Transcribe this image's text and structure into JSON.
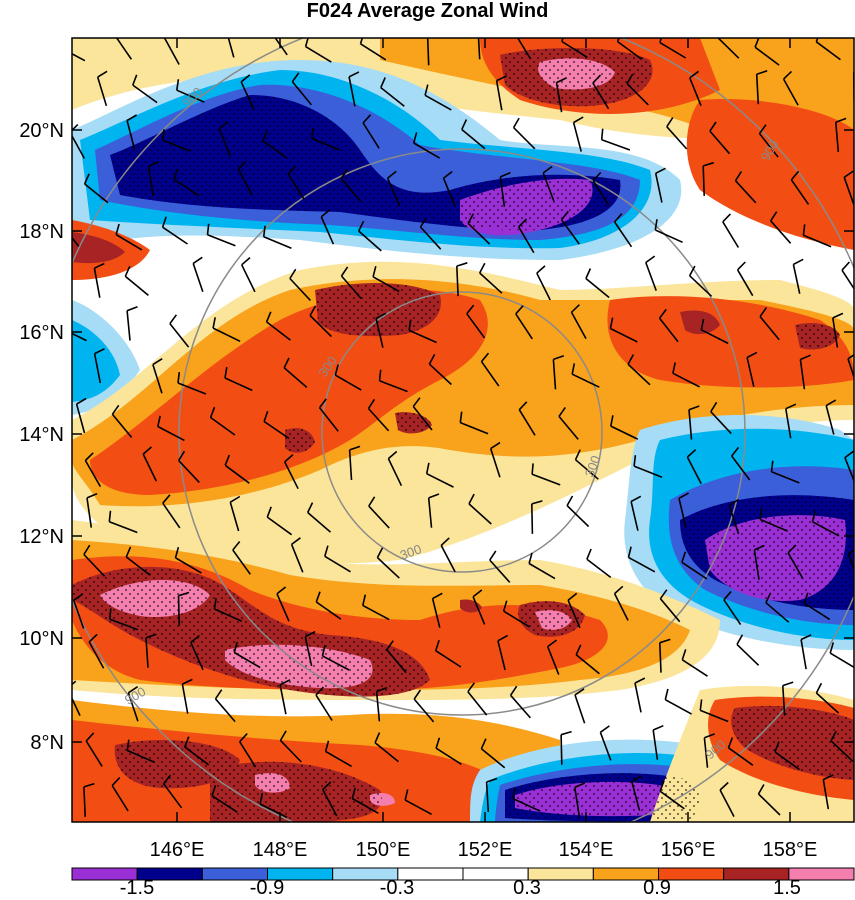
{
  "title": "F024 Average Zonal Wind",
  "lon_ticks": [
    "146°E",
    "148°E",
    "150°E",
    "152°E",
    "154°E",
    "156°E",
    "158°E"
  ],
  "lat_ticks": [
    "8°N",
    "10°N",
    "12°N",
    "14°N",
    "16°N",
    "18°N",
    "20°N"
  ],
  "range_rings": [
    {
      "radius_km": 300,
      "labels": [
        "300",
        "300",
        "300"
      ]
    },
    {
      "radius_km": 900,
      "labels": [
        "900",
        "900",
        "900",
        "900"
      ]
    }
  ],
  "colorbar": {
    "colors": [
      "#9B2FD6",
      "#00008B",
      "#3A5FD9",
      "#00B4F0",
      "#A6DCF5",
      "#FFFFFF",
      "#FFFFFF",
      "#FBE59A",
      "#F9A21B",
      "#F24E14",
      "#A82424",
      "#F47FAE"
    ],
    "labels": [
      "-1.5",
      "-0.9",
      "-0.3",
      "0.3",
      "0.9",
      "1.5"
    ]
  }
}
